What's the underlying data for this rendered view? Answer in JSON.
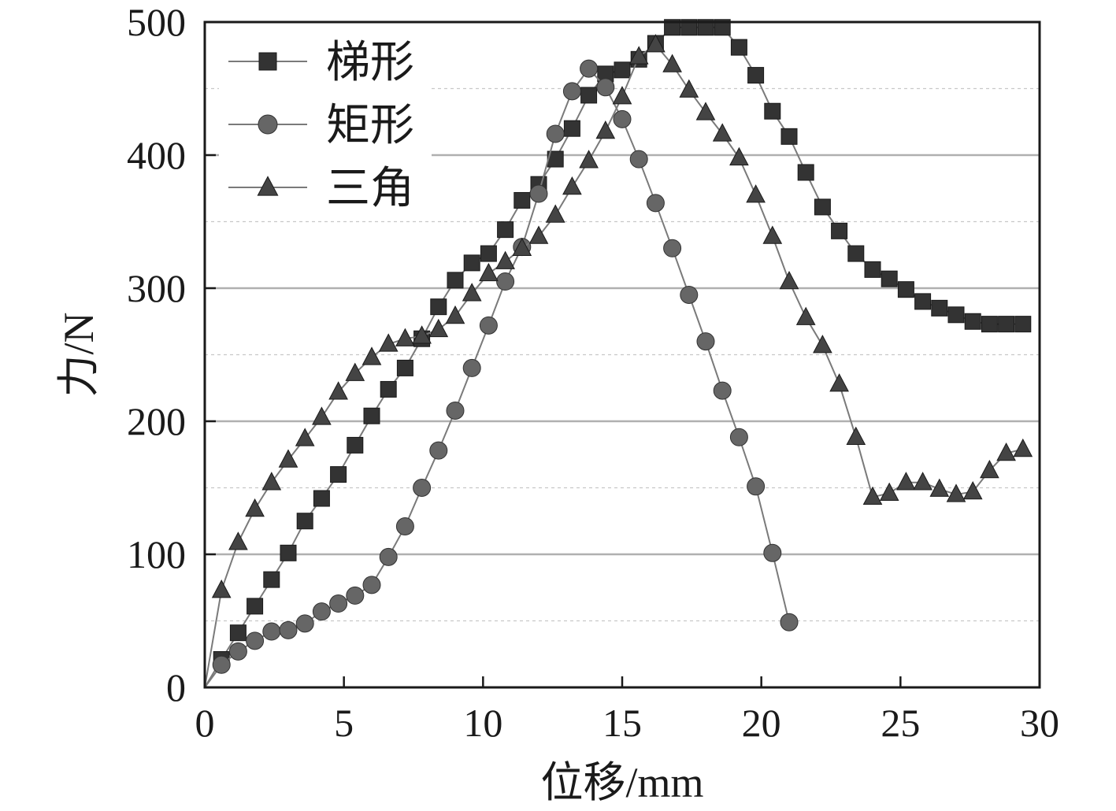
{
  "chart_data": {
    "type": "line",
    "xlabel": "位移/mm",
    "ylabel": "力/N",
    "xlim": [
      0,
      30
    ],
    "ylim": [
      0,
      500
    ],
    "xticks": [
      0,
      5,
      10,
      15,
      20,
      25,
      30
    ],
    "yticks": [
      0,
      100,
      200,
      300,
      400,
      500
    ],
    "minor_gridlines_y": [
      50,
      150,
      250,
      350,
      450
    ],
    "grid": "horizontal",
    "legend_position": "top-left",
    "series": [
      {
        "name": "梯形",
        "marker": "square",
        "color": "#333333",
        "x": [
          0,
          0.6,
          1.2,
          1.8,
          2.4,
          3.0,
          3.6,
          4.2,
          4.8,
          5.4,
          6.0,
          6.6,
          7.2,
          7.8,
          8.4,
          9.0,
          9.6,
          10.2,
          10.8,
          11.4,
          12.0,
          12.6,
          13.2,
          13.8,
          14.4,
          15.0,
          15.6,
          16.2,
          16.8,
          17.4,
          18.0,
          18.6,
          19.2,
          19.8,
          20.4,
          21.0,
          21.6,
          22.2,
          22.8,
          23.4,
          24.0,
          24.6,
          25.2,
          25.8,
          26.4,
          27.0,
          27.6,
          28.2,
          28.8,
          29.4
        ],
        "y": [
          0,
          21,
          41,
          61,
          81,
          101,
          125,
          142,
          160,
          182,
          204,
          224,
          240,
          262,
          286,
          306,
          319,
          326,
          344,
          366,
          378,
          397,
          420,
          445,
          461,
          464,
          472,
          484,
          496,
          496,
          496,
          496,
          481,
          460,
          433,
          414,
          387,
          361,
          343,
          326,
          314,
          307,
          299,
          290,
          285,
          280,
          275,
          273,
          273,
          273
        ]
      },
      {
        "name": "矩形",
        "marker": "circle",
        "color": "#666666",
        "x": [
          0,
          0.6,
          1.2,
          1.8,
          2.4,
          3.0,
          3.6,
          4.2,
          4.8,
          5.4,
          6.0,
          6.6,
          7.2,
          7.8,
          8.4,
          9.0,
          9.6,
          10.2,
          10.8,
          11.4,
          12.0,
          12.6,
          13.2,
          13.8,
          14.4,
          15.0,
          15.6,
          16.2,
          16.8,
          17.4,
          18.0,
          18.6,
          19.2,
          19.8,
          20.4,
          21.0
        ],
        "y": [
          0,
          17,
          27,
          35,
          42,
          43,
          48,
          57,
          63,
          69,
          77,
          98,
          121,
          150,
          178,
          208,
          240,
          272,
          305,
          331,
          371,
          416,
          448,
          465,
          451,
          427,
          397,
          364,
          330,
          295,
          260,
          223,
          188,
          151,
          101,
          49
        ]
      },
      {
        "name": "三角",
        "marker": "triangle",
        "color": "#444444",
        "x": [
          0,
          0.6,
          1.2,
          1.8,
          2.4,
          3.0,
          3.6,
          4.2,
          4.8,
          5.4,
          6.0,
          6.6,
          7.2,
          7.8,
          8.4,
          9.0,
          9.6,
          10.2,
          10.8,
          11.4,
          12.0,
          12.6,
          13.2,
          13.8,
          14.4,
          15.0,
          15.6,
          16.2,
          16.8,
          17.4,
          18.0,
          18.6,
          19.2,
          19.8,
          20.4,
          21.0,
          21.6,
          22.2,
          22.8,
          23.4,
          24.0,
          24.6,
          25.2,
          25.8,
          26.4,
          27.0,
          27.6,
          28.2,
          28.8,
          29.4
        ],
        "y": [
          0,
          73,
          109,
          134,
          154,
          171,
          187,
          203,
          222,
          236,
          248,
          258,
          262,
          264,
          269,
          279,
          296,
          311,
          320,
          330,
          339,
          355,
          376,
          396,
          418,
          444,
          474,
          483,
          468,
          449,
          432,
          416,
          398,
          370,
          339,
          305,
          278,
          257,
          228,
          188,
          143,
          146,
          154,
          154,
          149,
          145,
          147,
          163,
          176,
          179
        ]
      }
    ]
  }
}
